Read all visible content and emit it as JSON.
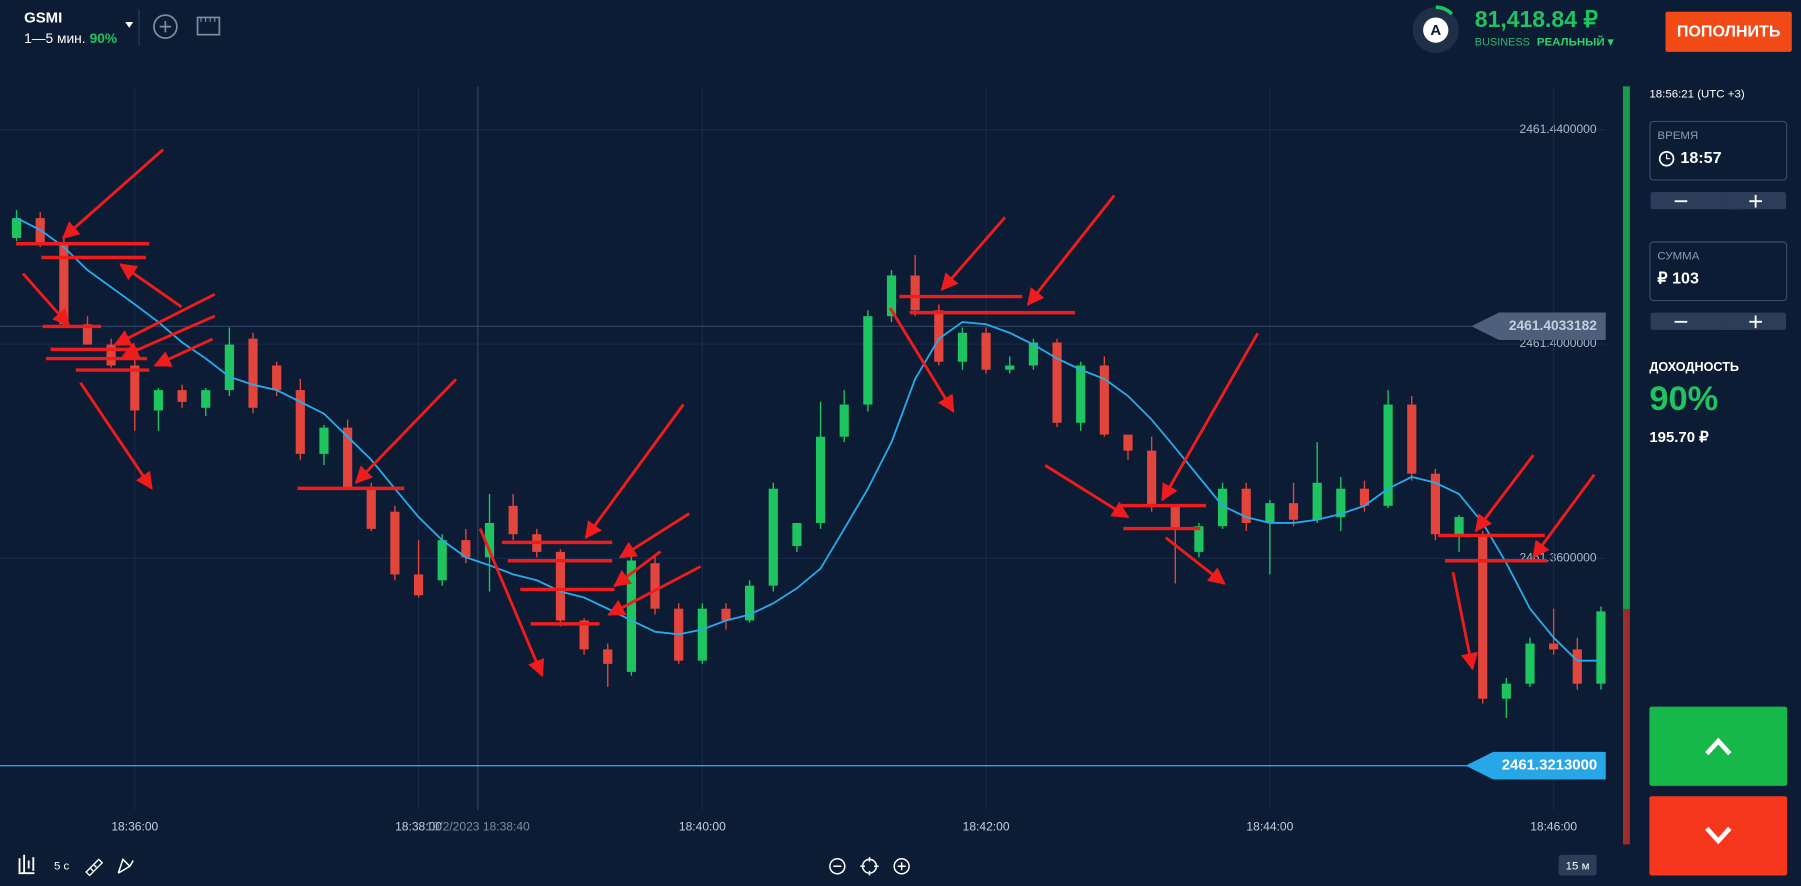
{
  "header": {
    "asset": "GSMI",
    "expiry": "1—5 мин.",
    "payout": "90%",
    "avatar": "A",
    "balance": "81,418.84 ₽",
    "account_type": "BUSINESS",
    "account_mode": "РЕАЛЬНЫЙ ▾",
    "deposit_button": "ПОПОЛНИТЬ"
  },
  "sidebar": {
    "server_time": "18:56:21 (UTC +3)",
    "time_label": "ВРЕМЯ",
    "time_value": "18:57",
    "amount_label": "СУММА",
    "amount_value": "₽ 103",
    "yield_label": "ДОХОДНОСТЬ",
    "yield_percent": "90%",
    "yield_amount": "195.70 ₽"
  },
  "toolbar": {
    "timeframe": "5 c",
    "zoom_level": "15 м"
  },
  "chart_data": {
    "type": "candlestick",
    "x": [
      "18:35:10",
      "18:35:20",
      "18:35:30",
      "18:35:40",
      "18:35:50",
      "18:36:00",
      "18:36:10",
      "18:36:20",
      "18:36:30",
      "18:36:40",
      "18:36:50",
      "18:37:00",
      "18:37:10",
      "18:37:20",
      "18:37:30",
      "18:37:40",
      "18:37:50",
      "18:38:00",
      "18:38:10",
      "18:38:20",
      "18:38:30",
      "18:38:40",
      "18:38:50",
      "18:39:00",
      "18:39:10",
      "18:39:20",
      "18:39:30",
      "18:39:40",
      "18:39:50",
      "18:40:00",
      "18:40:10",
      "18:40:20",
      "18:40:30",
      "18:40:40",
      "18:40:50",
      "18:41:00",
      "18:41:10",
      "18:41:20",
      "18:41:30",
      "18:41:40",
      "18:41:50",
      "18:42:00",
      "18:42:10",
      "18:42:20",
      "18:42:30",
      "18:42:40",
      "18:42:50",
      "18:43:00",
      "18:43:10",
      "18:43:20",
      "18:43:30",
      "18:43:40",
      "18:43:50",
      "18:44:00",
      "18:44:10",
      "18:44:20",
      "18:44:30",
      "18:44:40",
      "18:44:50",
      "18:45:00",
      "18:45:10",
      "18:45:20",
      "18:45:30",
      "18:45:40",
      "18:45:50",
      "18:46:00",
      "18:46:10",
      "18:46:20"
    ],
    "open": [
      2461.4198,
      2461.4235,
      2461.4187,
      2461.4037,
      2461.3999,
      2461.396,
      2461.3876,
      2461.3914,
      2461.3881,
      2461.3914,
      2461.401,
      2461.396,
      2461.3914,
      2461.3795,
      2461.3844,
      2461.373,
      2461.3687,
      2461.357,
      2461.3559,
      2461.3634,
      2461.3602,
      2461.3698,
      2461.3645,
      2461.3612,
      2461.3484,
      2461.343,
      2461.3388,
      2461.3591,
      2461.3506,
      2461.3409,
      2461.3506,
      2461.3484,
      2461.3549,
      2461.3623,
      2461.3666,
      2461.3827,
      2461.3887,
      2461.4052,
      2461.4128,
      2461.4063,
      2461.3967,
      2461.4021,
      2461.3952,
      2461.396,
      2461.4003,
      2461.3853,
      2461.396,
      2461.3831,
      2461.3801,
      2461.3698,
      2461.3612,
      2461.366,
      2461.373,
      2461.3666,
      2461.3703,
      2461.3672,
      2461.3677,
      2461.373,
      2461.3698,
      2461.3887,
      2461.3758,
      2461.3645,
      2461.3645,
      2461.3338,
      2461.3366,
      2461.3441,
      2461.343,
      2461.3366
    ],
    "high": [
      2461.425,
      2461.4246,
      2461.4202,
      2461.4052,
      2461.401,
      2461.3977,
      2461.3918,
      2461.3924,
      2461.3918,
      2461.4031,
      2461.4021,
      2461.3967,
      2461.3935,
      2461.3849,
      2461.3859,
      2461.3741,
      2461.3698,
      2461.3634,
      2461.3645,
      2461.3655,
      2461.372,
      2461.372,
      2461.3655,
      2461.3617,
      2461.3488,
      2461.3441,
      2461.3612,
      2461.3602,
      2461.3516,
      2461.3516,
      2461.3516,
      2461.3559,
      2461.3741,
      2461.3666,
      2461.3892,
      2461.3914,
      2461.4063,
      2461.4138,
      2461.4166,
      2461.4074,
      2461.4031,
      2461.4031,
      2461.3977,
      2461.401,
      2461.401,
      2461.3967,
      2461.3977,
      2461.3831,
      2461.3827,
      2461.3698,
      2461.3666,
      2461.3741,
      2461.3741,
      2461.3709,
      2461.3741,
      2461.3817,
      2461.3752,
      2461.3745,
      2461.3914,
      2461.3903,
      2461.3767,
      2461.3681,
      2461.3651,
      2461.3377,
      2461.3452,
      2461.3506,
      2461.3452,
      2461.351
    ],
    "low": [
      2461.4192,
      2461.4181,
      2461.4031,
      2461.3999,
      2461.3956,
      2461.3838,
      2461.3838,
      2461.3881,
      2461.3866,
      2461.3903,
      2461.3871,
      2461.3903,
      2461.3784,
      2461.3774,
      2461.373,
      2461.3651,
      2461.3559,
      2461.3527,
      2461.3549,
      2461.3591,
      2461.3538,
      2461.3634,
      2461.3602,
      2461.3473,
      2461.342,
      2461.336,
      2461.3381,
      2461.3495,
      2461.3403,
      2461.3403,
      2461.3467,
      2461.348,
      2461.3538,
      2461.3612,
      2461.3655,
      2461.3817,
      2461.3874,
      2461.4041,
      2461.4052,
      2461.396,
      2461.3952,
      2461.3945,
      2461.3945,
      2461.3952,
      2461.3845,
      2461.3838,
      2461.3827,
      2461.3784,
      2461.3687,
      2461.3553,
      2461.3602,
      2461.3655,
      2461.3651,
      2461.357,
      2461.366,
      2461.3666,
      2461.3651,
      2461.3687,
      2461.3694,
      2461.3745,
      2461.3634,
      2461.3612,
      2461.3329,
      2461.3302,
      2461.336,
      2461.342,
      2461.3355,
      2461.3355
    ],
    "close": [
      2461.4235,
      2461.4187,
      2461.4037,
      2461.3999,
      2461.396,
      2461.3876,
      2461.3914,
      2461.3892,
      2461.3914,
      2461.3999,
      2461.3881,
      2461.3914,
      2461.3795,
      2461.3844,
      2461.373,
      2461.3655,
      2461.357,
      2461.3531,
      2461.3634,
      2461.3602,
      2461.3666,
      2461.3645,
      2461.3612,
      2461.3484,
      2461.343,
      2461.3403,
      2461.3596,
      2461.3506,
      2461.3409,
      2461.3506,
      2461.3484,
      2461.3549,
      2461.373,
      2461.3666,
      2461.3827,
      2461.3887,
      2461.4052,
      2461.4128,
      2461.4063,
      2461.3967,
      2461.4021,
      2461.3952,
      2461.396,
      2461.4003,
      2461.3853,
      2461.396,
      2461.3831,
      2461.3801,
      2461.3698,
      2461.3655,
      2461.366,
      2461.373,
      2461.3666,
      2461.3703,
      2461.3672,
      2461.3741,
      2461.373,
      2461.3698,
      2461.3887,
      2461.3758,
      2461.3645,
      2461.3677,
      2461.3338,
      2461.3366,
      2461.3441,
      2461.343,
      2461.3366,
      2461.3501
    ],
    "up_color": "#1ec45f",
    "down_color": "#e2453c",
    "ma": {
      "color": "#2aa8e8",
      "values": [
        2461.4235,
        2461.4213,
        2461.4181,
        2461.4138,
        2461.4106,
        2461.4074,
        2461.4041,
        2461.4003,
        2461.3973,
        2461.3939,
        2461.3924,
        2461.3914,
        2461.3892,
        2461.387,
        2461.3827,
        2461.3784,
        2461.373,
        2461.3677,
        2461.3634,
        2461.3602,
        2461.3587,
        2461.357,
        2461.3559,
        2461.3538,
        2461.3527,
        2461.3506,
        2461.3484,
        2461.3463,
        2461.3458,
        2461.3467,
        2461.3484,
        2461.3495,
        2461.3516,
        2461.3544,
        2461.3581,
        2461.3655,
        2461.373,
        2461.3817,
        2461.3935,
        2461.401,
        2461.4041,
        2461.4037,
        2461.4021,
        2461.3999,
        2461.3973,
        2461.3952,
        2461.3935,
        2461.3903,
        2461.3859,
        2461.3806,
        2461.3752,
        2461.3698,
        2461.3677,
        2461.3666,
        2461.3666,
        2461.3672,
        2461.3683,
        2461.3698,
        2461.373,
        2461.3752,
        2461.3741,
        2461.372,
        2461.3666,
        2461.3591,
        2461.3506,
        2461.3452,
        2461.3409,
        2461.3409
      ]
    },
    "xlim": [
      "18:35:03",
      "18:46:23"
    ],
    "xticks": [
      "18:36:00",
      "18:38:00",
      "18:40:00",
      "18:42:00",
      "18:44:00",
      "18:46:00"
    ],
    "ylim": [
      2461.3141,
      2461.4481
    ],
    "yticks": [
      {
        "value": 2461.36,
        "label": "2461.3600000"
      },
      {
        "value": 2461.4,
        "label": "2461.4000000"
      },
      {
        "value": 2461.44,
        "label": "2461.4400000"
      }
    ],
    "grid": true,
    "current_price": {
      "value": 2461.3213,
      "label": "2461.3213000"
    },
    "crosshair": {
      "price": {
        "value": 2461.4033182,
        "label": "2461.4033182"
      },
      "time": "10/2/2023 18:38:40"
    }
  }
}
